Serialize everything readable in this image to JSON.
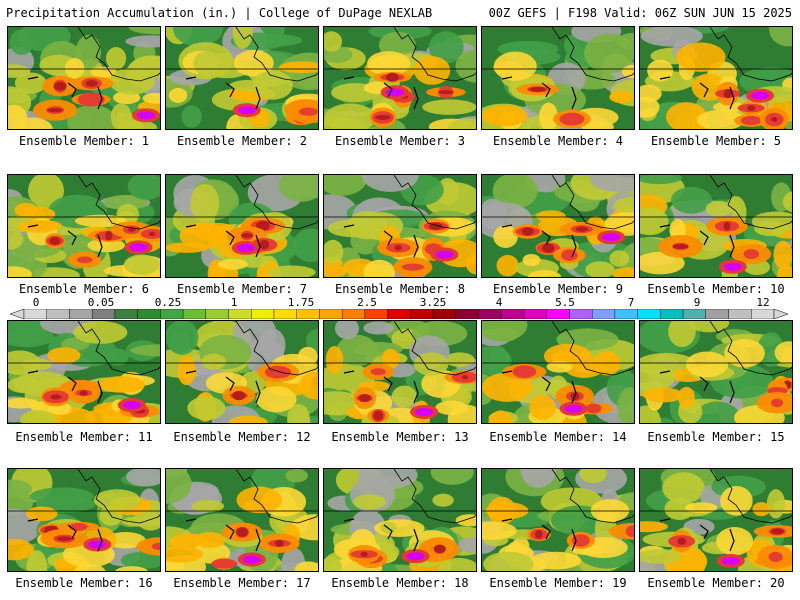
{
  "header": {
    "left": "Precipitation Accumulation (in.) | College of DuPage NEXLAB",
    "right": "00Z GEFS | F198 Valid: 06Z SUN JUN 15 2025"
  },
  "panels": [
    {
      "label": "Ensemble Member: 1",
      "mag": 0.75
    },
    {
      "label": "Ensemble Member: 2",
      "mag": 0.6
    },
    {
      "label": "Ensemble Member: 3",
      "mag": 0.8
    },
    {
      "label": "Ensemble Member: 4",
      "mag": 0.45
    },
    {
      "label": "Ensemble Member: 5",
      "mag": 0.85
    },
    {
      "label": "Ensemble Member: 6",
      "mag": 0.9
    },
    {
      "label": "Ensemble Member: 7",
      "mag": 0.85
    },
    {
      "label": "Ensemble Member: 8",
      "mag": 0.7
    },
    {
      "label": "Ensemble Member: 9",
      "mag": 0.8
    },
    {
      "label": "Ensemble Member: 10",
      "mag": 0.6
    },
    {
      "label": "Ensemble Member: 11",
      "mag": 0.8
    },
    {
      "label": "Ensemble Member: 12",
      "mag": 0.45
    },
    {
      "label": "Ensemble Member: 13",
      "mag": 0.85
    },
    {
      "label": "Ensemble Member: 14",
      "mag": 0.6
    },
    {
      "label": "Ensemble Member: 15",
      "mag": 0.5
    },
    {
      "label": "Ensemble Member: 16",
      "mag": 0.7
    },
    {
      "label": "Ensemble Member: 17",
      "mag": 0.6
    },
    {
      "label": "Ensemble Member: 18",
      "mag": 0.8
    },
    {
      "label": "Ensemble Member: 19",
      "mag": 0.55
    },
    {
      "label": "Ensemble Member: 20",
      "mag": 0.75
    }
  ],
  "colorbar": {
    "tick_labels": [
      "0",
      "0.05",
      "0.25",
      "1",
      "1.75",
      "2.5",
      "3.25",
      "4",
      "5.5",
      "7",
      "9",
      "12"
    ],
    "colors": [
      "#d9d9d9",
      "#bfbfbf",
      "#a6a6a6",
      "#7f7f7f",
      "#3f7f3f",
      "#2e8b2e",
      "#41a541",
      "#6cbf34",
      "#9acd32",
      "#ccdd22",
      "#eeee00",
      "#ffdd00",
      "#ffc000",
      "#ffa500",
      "#ff8000",
      "#ff4000",
      "#e00000",
      "#c00000",
      "#a00000",
      "#8b0030",
      "#a00060",
      "#c00090",
      "#e000c0",
      "#ff00ff",
      "#b060ff",
      "#7f9fff",
      "#40c0ff",
      "#00e0ff",
      "#00c0c0",
      "#50b0b0",
      "#a0a0a0",
      "#c0c0c0",
      "#d8d8d8"
    ]
  },
  "precip_colors": {
    "trace": "#a6a6a6",
    "light1": "#2e7d32",
    "light2": "#43a047",
    "light3": "#7cb342",
    "mod1": "#c0ca33",
    "mod2": "#fdd835",
    "mod3": "#ffb300",
    "heavy1": "#fb8c00",
    "heavy2": "#e53935",
    "heavy3": "#b71c1c",
    "extreme": "#d500f9"
  }
}
